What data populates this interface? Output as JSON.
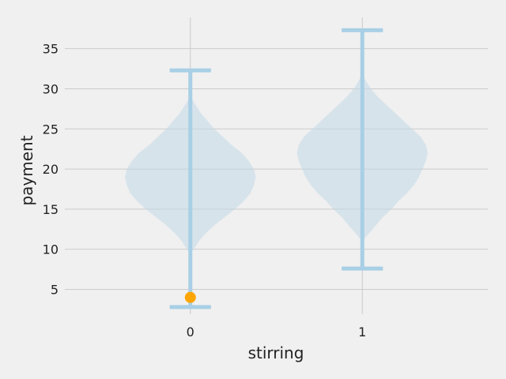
{
  "chart_data": {
    "type": "violin",
    "title": "",
    "xlabel": "stirring",
    "ylabel": "payment",
    "categories": [
      "0",
      "1"
    ],
    "x_positions": [
      0,
      1
    ],
    "xlim": [
      -0.73,
      1.73
    ],
    "ylim": [
      1.9,
      38.9
    ],
    "yticks": [
      5,
      10,
      15,
      20,
      25,
      30,
      35
    ],
    "grid": true,
    "violins": [
      {
        "category": "0",
        "min": 2.8,
        "max": 32.3,
        "density": [
          [
            9.5,
            0.0
          ],
          [
            10,
            0.02
          ],
          [
            11,
            0.05
          ],
          [
            12,
            0.09
          ],
          [
            13,
            0.14
          ],
          [
            14,
            0.2
          ],
          [
            15,
            0.26
          ],
          [
            16,
            0.31
          ],
          [
            17,
            0.35
          ],
          [
            18,
            0.37
          ],
          [
            19,
            0.38
          ],
          [
            20,
            0.37
          ],
          [
            21,
            0.34
          ],
          [
            22,
            0.3
          ],
          [
            23,
            0.24
          ],
          [
            24,
            0.19
          ],
          [
            25,
            0.14
          ],
          [
            26,
            0.1
          ],
          [
            27,
            0.06
          ],
          [
            28,
            0.03
          ],
          [
            29,
            0.0
          ]
        ]
      },
      {
        "category": "1",
        "min": 7.6,
        "max": 37.3,
        "density": [
          [
            11,
            0.0
          ],
          [
            12,
            0.04
          ],
          [
            13,
            0.08
          ],
          [
            14,
            0.12
          ],
          [
            15,
            0.17
          ],
          [
            16,
            0.21
          ],
          [
            17,
            0.26
          ],
          [
            18,
            0.3
          ],
          [
            19,
            0.33
          ],
          [
            20,
            0.35
          ],
          [
            21,
            0.37
          ],
          [
            22,
            0.38
          ],
          [
            23,
            0.37
          ],
          [
            24,
            0.34
          ],
          [
            25,
            0.29
          ],
          [
            26,
            0.24
          ],
          [
            27,
            0.19
          ],
          [
            28,
            0.14
          ],
          [
            29,
            0.09
          ],
          [
            30,
            0.05
          ],
          [
            31,
            0.02
          ],
          [
            32,
            0.0
          ]
        ]
      }
    ],
    "markers": [
      {
        "category": "0",
        "x": 0,
        "y": 4.0,
        "color": "#ffa500"
      }
    ],
    "colors": {
      "violin_body": "#c2d8e8",
      "violin_line": "#a8cfe5",
      "grid": "#cbcbcb",
      "background": "#f0f0f0",
      "text": "#222222"
    }
  }
}
